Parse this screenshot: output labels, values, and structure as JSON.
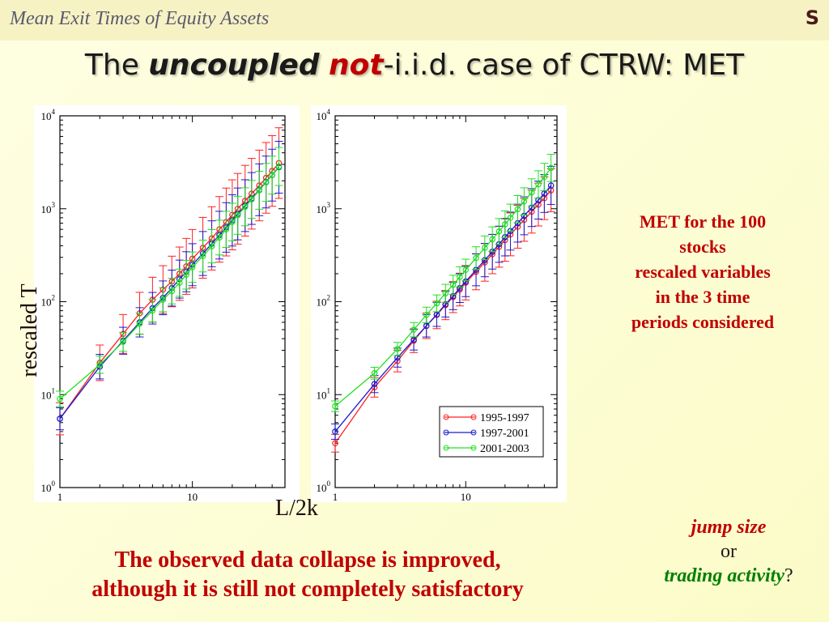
{
  "header": {
    "title": "Mean Exit Times of Equity Assets",
    "corner": "S"
  },
  "slide_title": {
    "part1": "The ",
    "part2": "uncoupled",
    "part3": " ",
    "part4": "not",
    "part5": "-i.i.d. case of CTRW: MET"
  },
  "axis_labels": {
    "y": "rescaled T",
    "x": "L/2k"
  },
  "side_note": [
    "MET for the 100",
    "stocks",
    "rescaled variables",
    "in the 3 time",
    "periods considered"
  ],
  "conclusion": [
    "The observed data collapse is improved,",
    "although it is still not completely satisfactory"
  ],
  "question": {
    "line1": "jump size",
    "line2": "or",
    "line3": "trading activity",
    "suffix": "?"
  },
  "colors": {
    "series1": "#ff2020",
    "series2": "#1a1ad0",
    "series3": "#20e020",
    "accent": "#c00000"
  },
  "chart_data": [
    {
      "type": "line",
      "xscale": "log",
      "yscale": "log",
      "xlim": [
        1,
        50
      ],
      "ylim": [
        1,
        10000
      ],
      "xticks": [
        "1",
        "10"
      ],
      "yticks": [
        "10^0",
        "10^1",
        "10^2",
        "10^3",
        "10^4"
      ],
      "grid": false,
      "x": [
        1,
        2,
        3,
        4,
        5,
        6,
        7,
        8,
        9,
        10,
        12,
        14,
        16,
        18,
        20,
        22,
        25,
        28,
        32,
        36,
        40,
        45
      ],
      "series": [
        {
          "values": [
            5.5,
            22,
            45,
            75,
            105,
            135,
            165,
            200,
            240,
            290,
            380,
            480,
            600,
            720,
            860,
            1000,
            1220,
            1450,
            1780,
            2150,
            2550,
            3100
          ]
        },
        {
          "values": [
            5.5,
            20,
            38,
            60,
            85,
            110,
            140,
            175,
            210,
            250,
            330,
            420,
            520,
            630,
            750,
            880,
            1080,
            1290,
            1600,
            1940,
            2300,
            2800
          ]
        },
        {
          "values": [
            9,
            21,
            37,
            58,
            80,
            105,
            130,
            160,
            195,
            235,
            310,
            395,
            490,
            600,
            720,
            850,
            1050,
            1260,
            1580,
            1920,
            2300,
            2850
          ]
        }
      ]
    },
    {
      "type": "line",
      "xscale": "log",
      "yscale": "log",
      "xlim": [
        1,
        50
      ],
      "ylim": [
        1,
        10000
      ],
      "xticks": [
        "1",
        "10"
      ],
      "yticks": [
        "10^0",
        "10^1",
        "10^2",
        "10^3",
        "10^4"
      ],
      "grid": false,
      "legend": "bottom-right",
      "x": [
        1,
        2,
        3,
        4,
        5,
        6,
        7,
        8,
        9,
        10,
        12,
        14,
        16,
        18,
        20,
        22,
        25,
        28,
        32,
        36,
        40,
        45
      ],
      "series": [
        {
          "name": "1995-1997",
          "values": [
            3,
            12,
            23,
            38,
            55,
            72,
            92,
            112,
            135,
            160,
            210,
            265,
            325,
            390,
            460,
            530,
            640,
            760,
            930,
            1110,
            1300,
            1580
          ]
        },
        {
          "name": "1997-2001",
          "values": [
            4,
            13,
            25,
            39,
            55,
            73,
            94,
            115,
            140,
            165,
            220,
            280,
            345,
            415,
            495,
            575,
            700,
            840,
            1030,
            1240,
            1460,
            1780
          ]
        },
        {
          "name": "2001-2003",
          "values": [
            7.5,
            17,
            31,
            50,
            72,
            96,
            123,
            152,
            185,
            220,
            295,
            380,
            470,
            570,
            680,
            800,
            990,
            1200,
            1500,
            1830,
            2200,
            2750
          ]
        }
      ]
    }
  ]
}
